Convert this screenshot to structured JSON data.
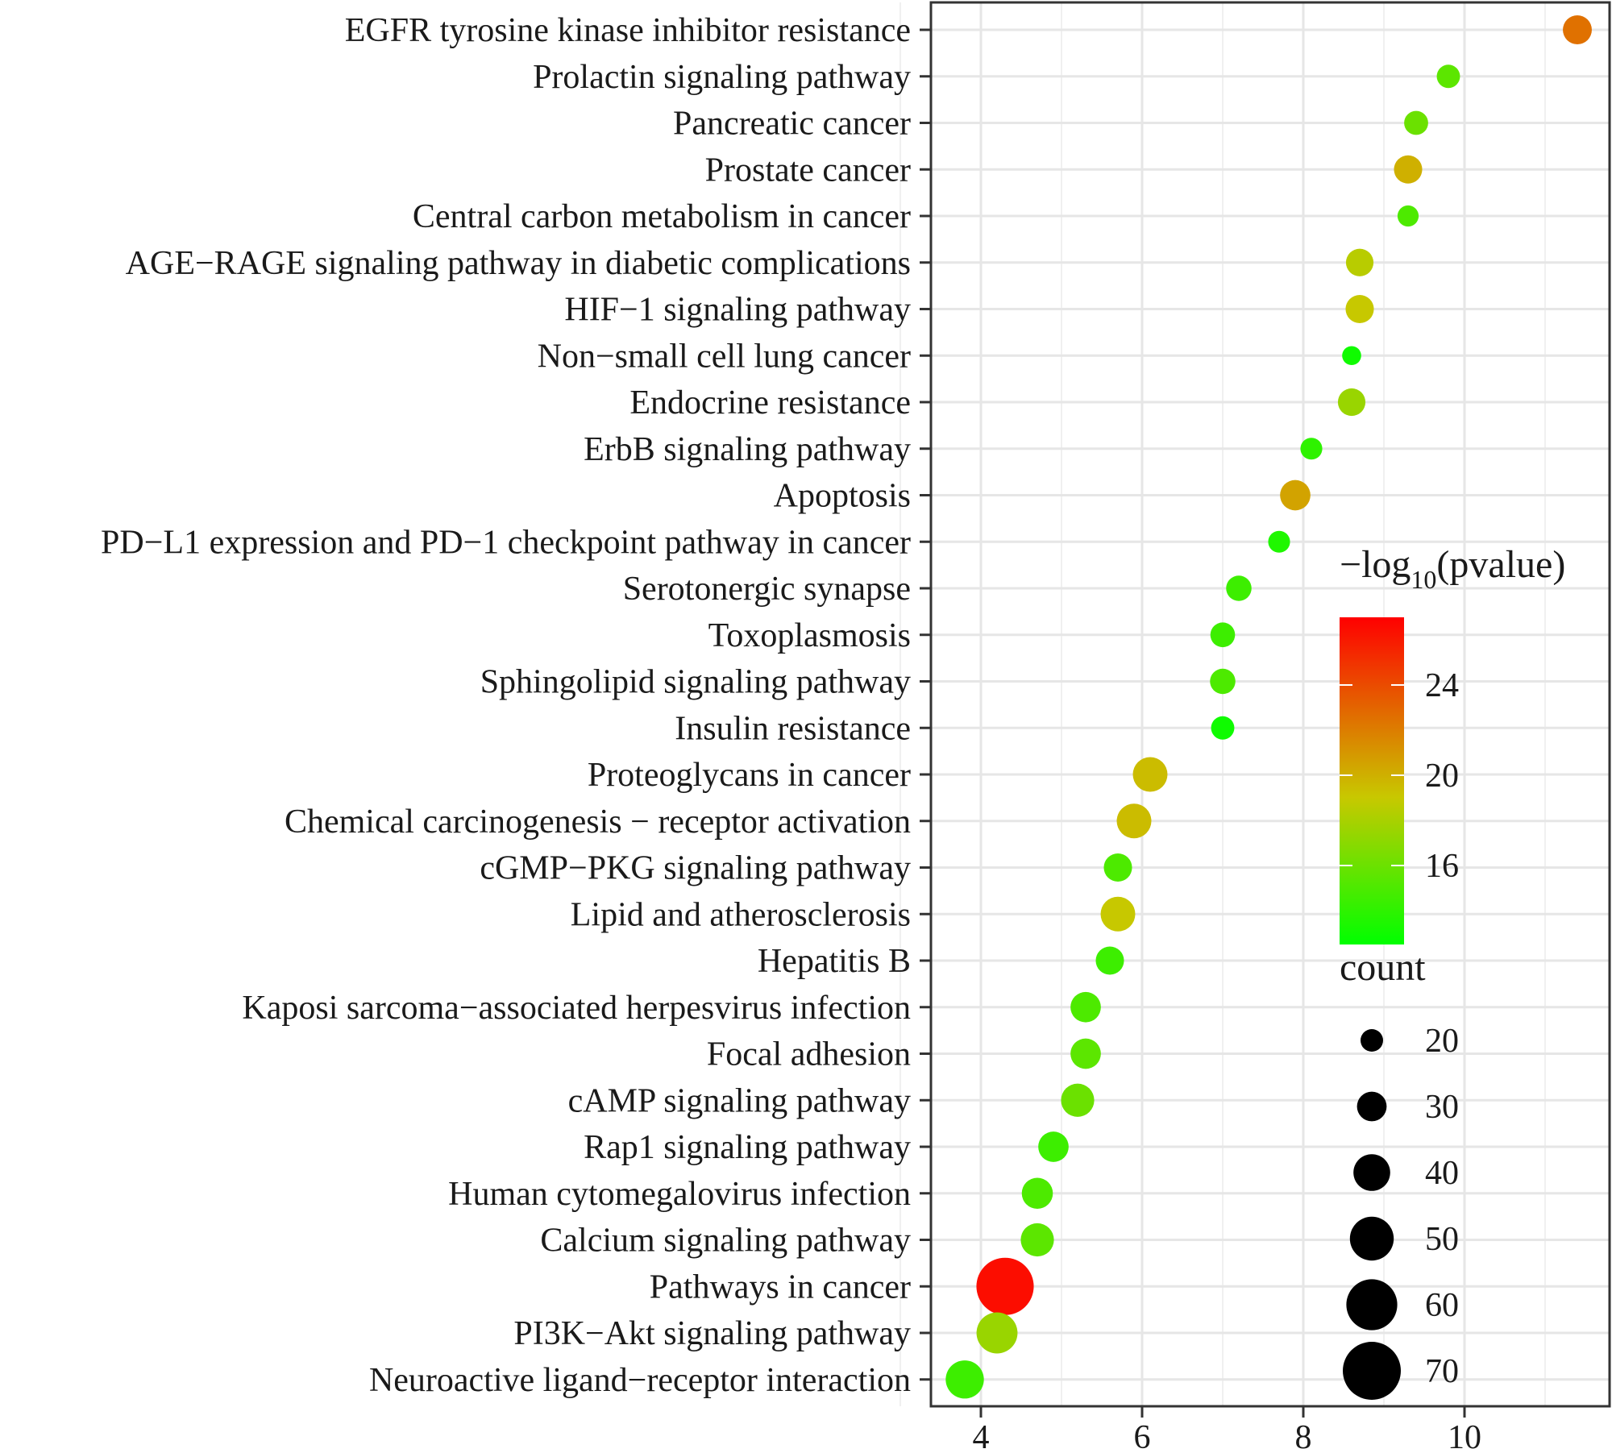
{
  "chart_data": {
    "type": "scatter",
    "title": "",
    "xlabel": "",
    "ylabel": "",
    "xlim": [
      3.4,
      11.8
    ],
    "x_ticks": [
      4,
      6,
      8,
      10
    ],
    "grid": true,
    "points": [
      {
        "label": "EGFR tyrosine kinase inhibitor resistance",
        "x": 11.4,
        "count": 29,
        "pvalue": 22.5
      },
      {
        "label": "Prolactin signaling pathway",
        "x": 9.8,
        "count": 21,
        "pvalue": 15.5
      },
      {
        "label": "Pancreatic cancer",
        "x": 9.4,
        "count": 22,
        "pvalue": 16.0
      },
      {
        "label": "Prostate cancer",
        "x": 9.3,
        "count": 28,
        "pvalue": 20.0
      },
      {
        "label": "Central carbon metabolism in cancer",
        "x": 9.3,
        "count": 18,
        "pvalue": 15.0
      },
      {
        "label": "AGE−RAGE signaling pathway in diabetic complications",
        "x": 8.7,
        "count": 27,
        "pvalue": 18.5
      },
      {
        "label": "HIF−1 signaling pathway",
        "x": 8.7,
        "count": 28,
        "pvalue": 19.0
      },
      {
        "label": "Non−small cell lung cancer",
        "x": 8.6,
        "count": 15,
        "pvalue": 13.0
      },
      {
        "label": "Endocrine resistance",
        "x": 8.6,
        "count": 27,
        "pvalue": 17.5
      },
      {
        "label": "ErbB signaling pathway",
        "x": 8.1,
        "count": 19,
        "pvalue": 14.0
      },
      {
        "label": "Apoptosis",
        "x": 7.9,
        "count": 31,
        "pvalue": 20.5
      },
      {
        "label": "PD−L1 expression and PD−1 checkpoint pathway in cancer",
        "x": 7.7,
        "count": 19,
        "pvalue": 13.5
      },
      {
        "label": "Serotonergic synapse",
        "x": 7.2,
        "count": 24,
        "pvalue": 14.5
      },
      {
        "label": "Toxoplasmosis",
        "x": 7.0,
        "count": 23,
        "pvalue": 14.5
      },
      {
        "label": "Sphingolipid signaling pathway",
        "x": 7.0,
        "count": 24,
        "pvalue": 15.0
      },
      {
        "label": "Insulin resistance",
        "x": 7.0,
        "count": 21,
        "pvalue": 13.0
      },
      {
        "label": "Proteoglycans in cancer",
        "x": 6.1,
        "count": 37,
        "pvalue": 19.5
      },
      {
        "label": "Chemical carcinogenesis − receptor activation",
        "x": 5.9,
        "count": 37,
        "pvalue": 19.5
      },
      {
        "label": "cGMP−PKG signaling pathway",
        "x": 5.7,
        "count": 28,
        "pvalue": 15.0
      },
      {
        "label": "Lipid and atherosclerosis",
        "x": 5.7,
        "count": 37,
        "pvalue": 19.0
      },
      {
        "label": "Hepatitis B",
        "x": 5.6,
        "count": 28,
        "pvalue": 14.5
      },
      {
        "label": "Kaposi sarcoma−associated herpesvirus infection",
        "x": 5.3,
        "count": 31,
        "pvalue": 15.0
      },
      {
        "label": "Focal adhesion",
        "x": 5.3,
        "count": 31,
        "pvalue": 15.5
      },
      {
        "label": "cAMP signaling pathway",
        "x": 5.2,
        "count": 35,
        "pvalue": 16.0
      },
      {
        "label": "Rap1 signaling pathway",
        "x": 4.9,
        "count": 31,
        "pvalue": 14.5
      },
      {
        "label": "Human cytomegalovirus infection",
        "x": 4.7,
        "count": 32,
        "pvalue": 15.0
      },
      {
        "label": "Calcium signaling pathway",
        "x": 4.7,
        "count": 35,
        "pvalue": 15.5
      },
      {
        "label": "Pathways in cancer",
        "x": 4.3,
        "count": 69,
        "pvalue": 26.5
      },
      {
        "label": "PI3K−Akt signaling pathway",
        "x": 4.2,
        "count": 46,
        "pvalue": 17.5
      },
      {
        "label": "Neuroactive ligand−receptor interaction",
        "x": 3.8,
        "count": 42,
        "pvalue": 14.5
      }
    ],
    "color_legend": {
      "title_prefix": "−log",
      "title_sub": "10",
      "title_suffix": "(pvalue)",
      "ticks": [
        24,
        20,
        16
      ],
      "range": [
        12.5,
        27
      ],
      "low_color": "#00ff00",
      "mid_color": "#c8c800",
      "high_color": "#ff0000"
    },
    "size_legend": {
      "title": "count",
      "values": [
        20,
        30,
        40,
        50,
        60,
        70
      ]
    }
  }
}
